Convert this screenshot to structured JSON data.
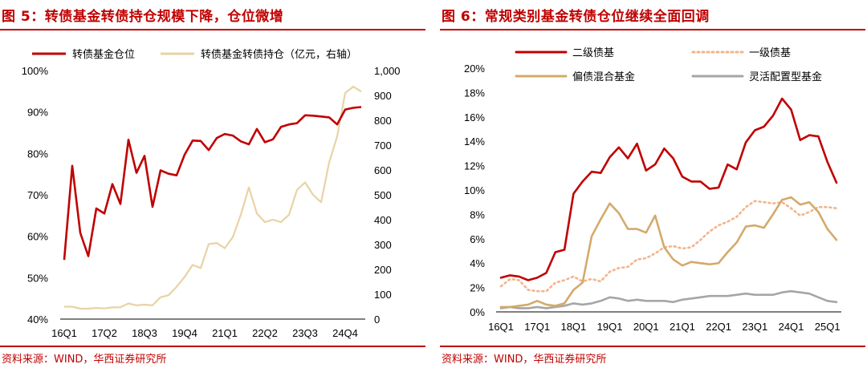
{
  "colors": {
    "accent": "#c00000",
    "gold": "#d4aa6a",
    "lightgold": "#e8d3a5",
    "dotorange": "#f2b48c",
    "gray": "#a6a6a6"
  },
  "left": {
    "title": "图 5：转债基金转债持仓规模下降，仓位微增",
    "source": "资料来源：WIND，华西证券研究所"
  },
  "right": {
    "title": "图 6：常规类别基金转债仓位继续全面回调",
    "source": "资料来源：WIND，华西证券研究所"
  },
  "chart_data": [
    {
      "type": "line",
      "categories": [
        "16Q1",
        "16Q2",
        "16Q3",
        "16Q4",
        "17Q1",
        "17Q2",
        "17Q3",
        "17Q4",
        "18Q1",
        "18Q2",
        "18Q3",
        "18Q4",
        "19Q1",
        "19Q2",
        "19Q3",
        "19Q4",
        "20Q1",
        "20Q2",
        "20Q3",
        "20Q4",
        "21Q1",
        "21Q2",
        "21Q3",
        "21Q4",
        "22Q1",
        "22Q2",
        "22Q3",
        "22Q4",
        "23Q1",
        "23Q2",
        "23Q3",
        "23Q4",
        "24Q1",
        "24Q2",
        "24Q3",
        "24Q4",
        "25Q1",
        "25Q2"
      ],
      "x_tick_labels": [
        "16Q1",
        "17Q2",
        "18Q3",
        "19Q4",
        "21Q1",
        "22Q2",
        "23Q3",
        "24Q4"
      ],
      "x_tick_every": 5,
      "ylim_left": [
        40,
        100
      ],
      "yticks_left": [
        "40%",
        "50%",
        "60%",
        "70%",
        "80%",
        "90%",
        "100%"
      ],
      "ylim_right": [
        0,
        1000
      ],
      "yticks_right": [
        "0",
        "100",
        "200",
        "300",
        "400",
        "500",
        "600",
        "700",
        "800",
        "900",
        "1,000"
      ],
      "series": [
        {
          "name": "转债基金仓位",
          "axis": "left",
          "values": [
            54.3,
            77,
            60.8,
            55.2,
            66.7,
            65.5,
            72.6,
            67.8,
            83.3,
            75.3,
            79.4,
            67.1,
            75.9,
            75.1,
            74.7,
            79.7,
            83.1,
            83,
            80.8,
            83.7,
            84.7,
            84.3,
            82.9,
            82.2,
            85.9,
            82.7,
            83.4,
            86.4,
            87,
            87.3,
            89.2,
            89.1,
            88.9,
            88.7,
            87,
            90.6,
            91,
            91.2
          ]
        },
        {
          "name": "转债基金转债持仓（亿元，右轴）",
          "axis": "right",
          "values": [
            50,
            50,
            42,
            42,
            45,
            43,
            47,
            48,
            63,
            55,
            58,
            55,
            88,
            96,
            130,
            170,
            218,
            205,
            302,
            306,
            285,
            330,
            420,
            530,
            425,
            390,
            400,
            390,
            420,
            520,
            550,
            500,
            470,
            630,
            735,
            910,
            935,
            915
          ]
        }
      ]
    },
    {
      "type": "line",
      "categories": [
        "16Q1",
        "16Q2",
        "16Q3",
        "16Q4",
        "17Q1",
        "17Q2",
        "17Q3",
        "17Q4",
        "18Q1",
        "18Q2",
        "18Q3",
        "18Q4",
        "19Q1",
        "19Q2",
        "19Q3",
        "19Q4",
        "20Q1",
        "20Q2",
        "20Q3",
        "20Q4",
        "21Q1",
        "21Q2",
        "21Q3",
        "21Q4",
        "22Q1",
        "22Q2",
        "22Q3",
        "22Q4",
        "23Q1",
        "23Q2",
        "23Q3",
        "23Q4",
        "24Q1",
        "24Q2",
        "24Q3",
        "24Q4",
        "25Q1",
        "25Q2"
      ],
      "x_tick_labels": [
        "16Q1",
        "17Q1",
        "18Q1",
        "19Q1",
        "20Q1",
        "21Q1",
        "22Q1",
        "23Q1",
        "24Q1",
        "25Q1"
      ],
      "x_tick_every": 4,
      "ylim": [
        0,
        20
      ],
      "yticks": [
        "0%",
        "2%",
        "4%",
        "6%",
        "8%",
        "10%",
        "12%",
        "14%",
        "16%",
        "18%",
        "20%"
      ],
      "series": [
        {
          "name": "二级债基",
          "style": "solid",
          "values": [
            2.8,
            3,
            2.9,
            2.6,
            2.8,
            3.2,
            4.9,
            5.1,
            9.7,
            10.7,
            11.5,
            11.4,
            12.7,
            13.5,
            12.6,
            13.8,
            11.6,
            12.1,
            13.4,
            12.6,
            11.1,
            10.7,
            10.7,
            10.1,
            10.2,
            12.1,
            11.7,
            13.9,
            14.9,
            15.2,
            16.1,
            17.5,
            16.6,
            14.1,
            14.5,
            14.4,
            12.3,
            10.6
          ]
        },
        {
          "name": "一级债基",
          "style": "dotted",
          "values": [
            2.1,
            2.7,
            2.6,
            1.8,
            1.7,
            1.7,
            2.4,
            2.6,
            2.9,
            2.5,
            2.7,
            2.5,
            3.3,
            3.6,
            3.7,
            4.3,
            4.4,
            4.8,
            5.3,
            5.4,
            5.2,
            5.3,
            5.9,
            6.6,
            7.1,
            7.4,
            7.8,
            8.6,
            9.1,
            9,
            8.9,
            9,
            8.5,
            7.9,
            8.2,
            8.6,
            8.6,
            8.5
          ]
        },
        {
          "name": "偏债混合基金",
          "style": "solid",
          "values": [
            0.4,
            0.4,
            0.5,
            0.6,
            0.9,
            0.6,
            0.5,
            0.7,
            1.8,
            2.4,
            6.2,
            7.6,
            8.9,
            8.1,
            6.8,
            6.8,
            6.5,
            7.9,
            5.3,
            4.3,
            3.8,
            4.1,
            4,
            3.9,
            4,
            4.9,
            5.7,
            7,
            7.1,
            6.9,
            8,
            9.2,
            9.4,
            8.8,
            9,
            8.2,
            6.8,
            5.9
          ]
        },
        {
          "name": "灵活配置型基金",
          "style": "solid",
          "values": [
            0.3,
            0.4,
            0.3,
            0.3,
            0.4,
            0.3,
            0.4,
            0.5,
            0.7,
            0.6,
            0.7,
            0.9,
            1.2,
            1.1,
            0.9,
            1,
            0.9,
            0.9,
            0.9,
            0.8,
            1,
            1.1,
            1.2,
            1.3,
            1.3,
            1.3,
            1.4,
            1.5,
            1.4,
            1.4,
            1.4,
            1.6,
            1.7,
            1.6,
            1.5,
            1.2,
            0.9,
            0.8
          ]
        }
      ]
    }
  ]
}
